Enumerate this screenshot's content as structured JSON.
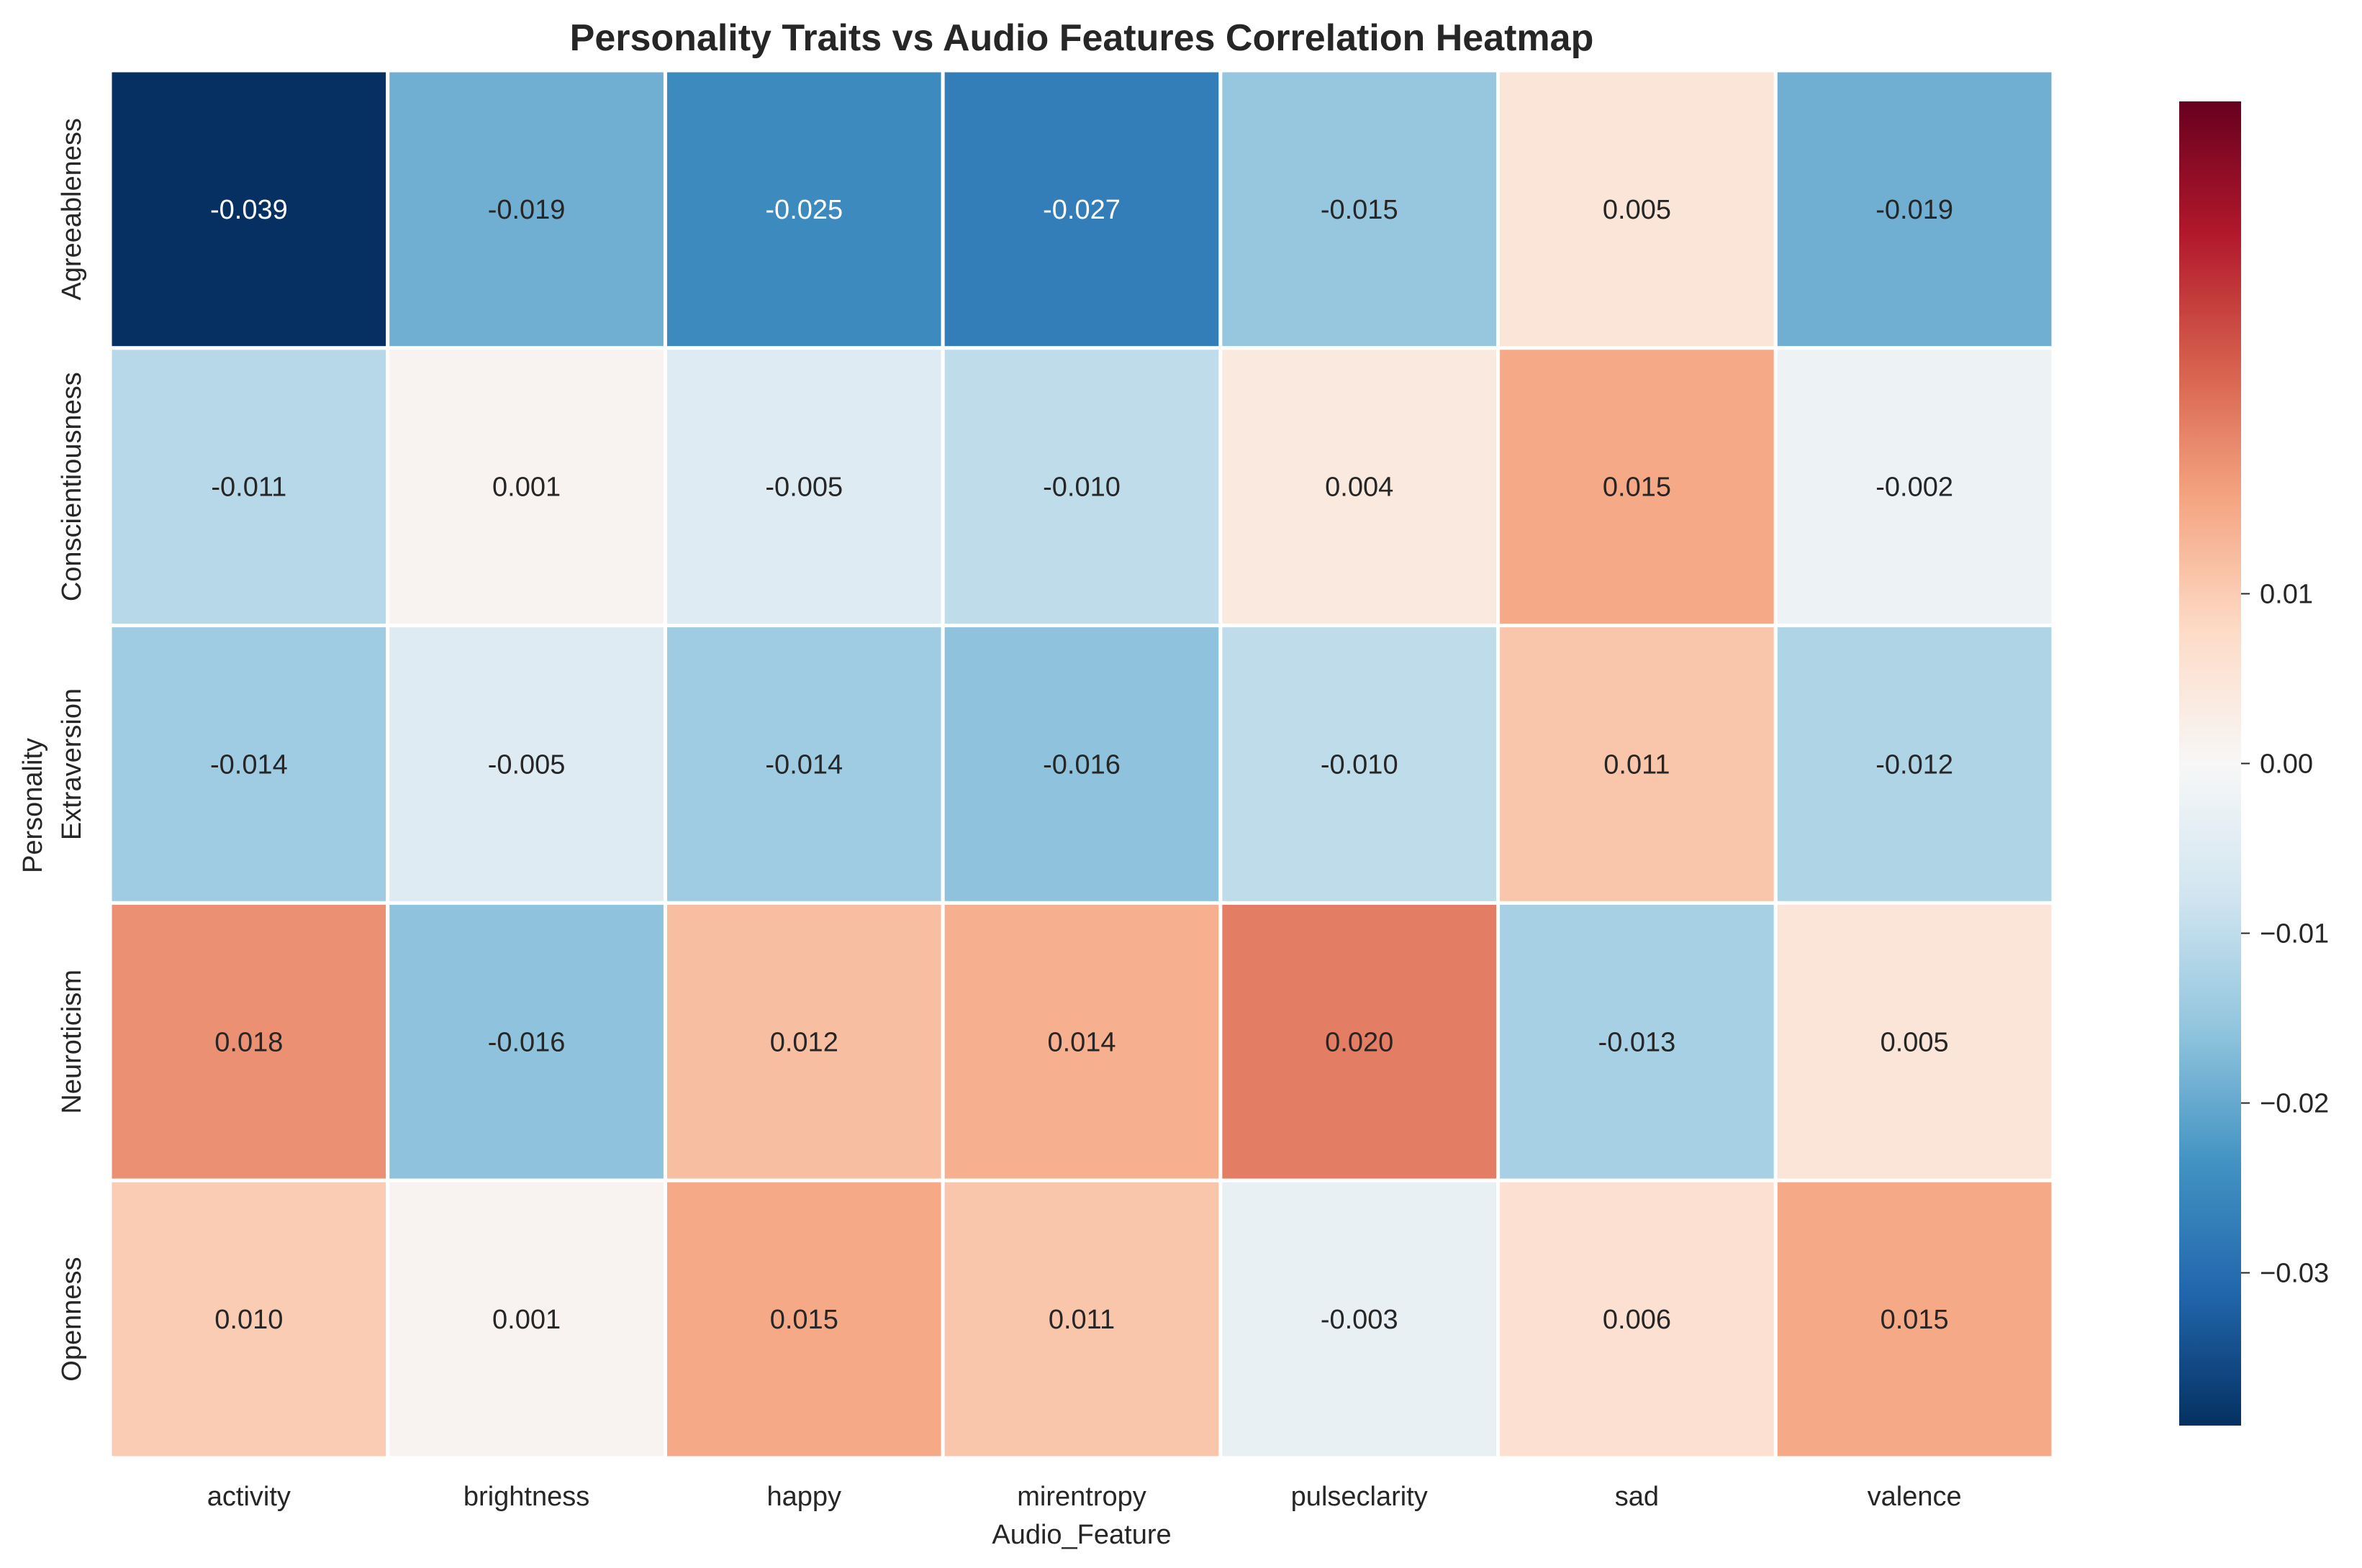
{
  "chart_data": {
    "type": "heatmap",
    "title": "Personality Traits vs Audio Features Correlation Heatmap",
    "xlabel": "Audio_Feature",
    "ylabel": "Personality",
    "columns": [
      "activity",
      "brightness",
      "happy",
      "mirentropy",
      "pulseclarity",
      "sad",
      "valence"
    ],
    "rows": [
      "Agreeableness",
      "Conscientiousness",
      "Extraversion",
      "Neuroticism",
      "Openness"
    ],
    "values": [
      [
        -0.039,
        -0.019,
        -0.025,
        -0.027,
        -0.015,
        0.005,
        -0.019
      ],
      [
        -0.011,
        0.001,
        -0.005,
        -0.01,
        0.004,
        0.015,
        -0.002
      ],
      [
        -0.014,
        -0.005,
        -0.014,
        -0.016,
        -0.01,
        0.011,
        -0.012
      ],
      [
        0.018,
        -0.016,
        0.012,
        0.014,
        0.02,
        -0.013,
        0.005
      ],
      [
        0.01,
        0.001,
        0.015,
        0.011,
        -0.003,
        0.006,
        0.015
      ]
    ],
    "value_format_decimals": 3,
    "colormap": "RdBu_r",
    "vmin": -0.039,
    "vmax": 0.039,
    "colorbar_ticks": [
      0.01,
      0.0,
      -0.01,
      -0.02,
      -0.03
    ],
    "colorbar_tick_labels": [
      "0.01",
      "0.00",
      "−0.01",
      "−0.02",
      "−0.03"
    ],
    "grid": false,
    "cell_border_color": "#ffffff"
  }
}
